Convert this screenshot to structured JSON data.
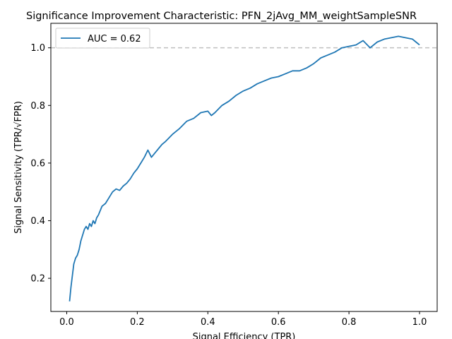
{
  "chart_data": {
    "type": "line",
    "title": "Significance Improvement Characteristic:  PFN_2jAvg_MM_weightSampleSNR",
    "xlabel": "Signal Efficiency (TPR)",
    "ylabel": "Signal Sensitivity (TPR/√FPR)",
    "xlim": [
      -0.045,
      1.05
    ],
    "ylim": [
      0.085,
      1.085
    ],
    "xticks": [
      0.0,
      0.2,
      0.4,
      0.6,
      0.8,
      1.0
    ],
    "xtick_labels": [
      "0.0",
      "0.2",
      "0.4",
      "0.6",
      "0.8",
      "1.0"
    ],
    "yticks": [
      0.2,
      0.4,
      0.6,
      0.8,
      1.0
    ],
    "ytick_labels": [
      "0.2",
      "0.4",
      "0.6",
      "0.8",
      "1.0"
    ],
    "legend_position": "upper-left",
    "reference_line": {
      "y": 1.0,
      "style": "dashed",
      "color": "#c0c0c0"
    },
    "series": [
      {
        "name": "AUC = 0.62",
        "color": "#1f77b4",
        "x": [
          0.008,
          0.012,
          0.015,
          0.02,
          0.025,
          0.03,
          0.035,
          0.04,
          0.045,
          0.05,
          0.055,
          0.06,
          0.065,
          0.07,
          0.075,
          0.08,
          0.085,
          0.09,
          0.1,
          0.11,
          0.12,
          0.13,
          0.14,
          0.15,
          0.16,
          0.17,
          0.18,
          0.19,
          0.2,
          0.21,
          0.22,
          0.23,
          0.24,
          0.25,
          0.26,
          0.27,
          0.28,
          0.3,
          0.32,
          0.34,
          0.36,
          0.38,
          0.4,
          0.41,
          0.42,
          0.44,
          0.46,
          0.48,
          0.5,
          0.52,
          0.54,
          0.56,
          0.58,
          0.6,
          0.62,
          0.64,
          0.66,
          0.68,
          0.7,
          0.72,
          0.74,
          0.76,
          0.78,
          0.8,
          0.82,
          0.84,
          0.86,
          0.88,
          0.9,
          0.92,
          0.94,
          0.96,
          0.98,
          0.99,
          1.0
        ],
        "y": [
          0.12,
          0.17,
          0.2,
          0.25,
          0.27,
          0.28,
          0.3,
          0.33,
          0.35,
          0.37,
          0.38,
          0.37,
          0.39,
          0.38,
          0.4,
          0.39,
          0.41,
          0.42,
          0.45,
          0.46,
          0.48,
          0.5,
          0.51,
          0.505,
          0.52,
          0.53,
          0.545,
          0.565,
          0.58,
          0.6,
          0.62,
          0.645,
          0.62,
          0.635,
          0.65,
          0.665,
          0.675,
          0.7,
          0.72,
          0.745,
          0.755,
          0.775,
          0.78,
          0.765,
          0.775,
          0.8,
          0.815,
          0.835,
          0.85,
          0.86,
          0.875,
          0.885,
          0.895,
          0.9,
          0.91,
          0.92,
          0.92,
          0.93,
          0.945,
          0.965,
          0.975,
          0.985,
          1.0,
          1.005,
          1.01,
          1.025,
          1.0,
          1.02,
          1.03,
          1.035,
          1.04,
          1.035,
          1.03,
          1.02,
          1.01
        ]
      }
    ]
  }
}
